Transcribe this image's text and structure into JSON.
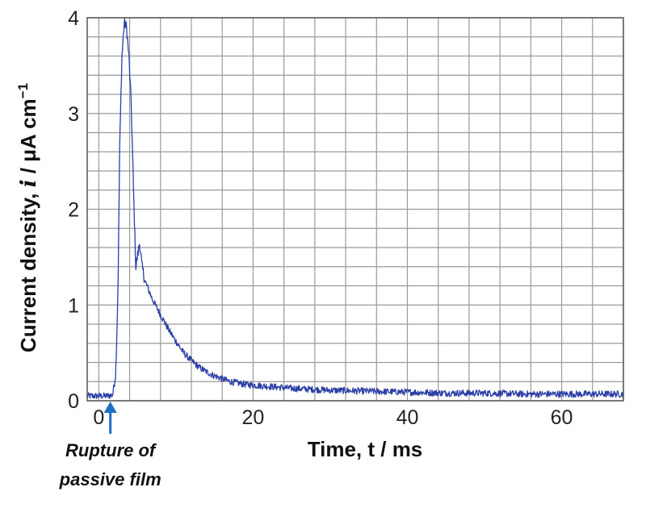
{
  "chart_data": {
    "type": "line",
    "title": "",
    "xlabel": "Time, t / ms",
    "ylabel": "Current density, i / μA cm⁻¹",
    "ylabel_parts": {
      "main": "Current density, ",
      "var": "i",
      "units": " / μA cm",
      "sup": "−1"
    },
    "xlim": [
      -1.5,
      68
    ],
    "ylim": [
      0,
      4
    ],
    "x_ticks": [
      0,
      20,
      40,
      60
    ],
    "y_ticks": [
      0,
      1,
      2,
      3,
      4
    ],
    "grid": true,
    "line_color": "#2b3fa6",
    "annotation_color": "#1f6fc0",
    "annotation": {
      "x": 1.5,
      "lines": [
        "Rupture of",
        "passive film"
      ]
    },
    "series": [
      {
        "values": [
          [
            -1.5,
            0.05
          ],
          [
            0.0,
            0.05
          ],
          [
            1.0,
            0.05
          ],
          [
            1.8,
            0.06
          ],
          [
            2.2,
            0.3
          ],
          [
            2.5,
            1.2
          ],
          [
            2.7,
            2.6
          ],
          [
            3.0,
            3.6
          ],
          [
            3.3,
            3.95
          ],
          [
            3.6,
            3.9
          ],
          [
            3.9,
            3.6
          ],
          [
            4.2,
            3.1
          ],
          [
            4.5,
            2.2
          ],
          [
            4.8,
            1.4
          ],
          [
            5.0,
            1.5
          ],
          [
            5.3,
            1.65
          ],
          [
            5.6,
            1.4
          ],
          [
            6.0,
            1.25
          ],
          [
            6.5,
            1.15
          ],
          [
            7.0,
            1.05
          ],
          [
            8.0,
            0.9
          ],
          [
            9.0,
            0.75
          ],
          [
            10.0,
            0.62
          ],
          [
            11.0,
            0.5
          ],
          [
            12.0,
            0.42
          ],
          [
            13.0,
            0.35
          ],
          [
            14.0,
            0.3
          ],
          [
            15.0,
            0.26
          ],
          [
            17.0,
            0.2
          ],
          [
            19.0,
            0.17
          ],
          [
            22.0,
            0.15
          ],
          [
            25.0,
            0.13
          ],
          [
            30.0,
            0.11
          ],
          [
            35.0,
            0.1
          ],
          [
            40.0,
            0.09
          ],
          [
            45.0,
            0.08
          ],
          [
            50.0,
            0.08
          ],
          [
            55.0,
            0.07
          ],
          [
            60.0,
            0.07
          ],
          [
            65.0,
            0.07
          ],
          [
            68.0,
            0.07
          ]
        ]
      }
    ]
  }
}
